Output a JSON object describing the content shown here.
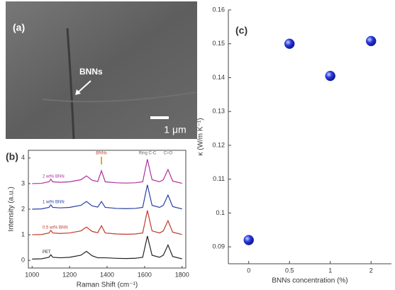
{
  "image_panel": {
    "label": "(a)",
    "annotation": "BNNs",
    "scale_bar": "1 μm"
  },
  "chart_data": [
    {
      "type": "line",
      "title": "(b)",
      "x_label": "Raman Shift (cm⁻¹)",
      "y_label": "Intensity (a.u.)",
      "x": [
        1000,
        1050,
        1090,
        1100,
        1110,
        1150,
        1200,
        1260,
        1290,
        1320,
        1350,
        1370,
        1390,
        1450,
        1500,
        1550,
        1590,
        1615,
        1640,
        1680,
        1700,
        1725,
        1750,
        1800
      ],
      "series": [
        {
          "name": "PET",
          "color": "#222222",
          "values": [
            0.05,
            0.06,
            0.12,
            0.22,
            0.12,
            0.1,
            0.12,
            0.2,
            0.35,
            0.18,
            0.1,
            0.1,
            0.1,
            0.08,
            0.07,
            0.08,
            0.12,
            0.95,
            0.2,
            0.12,
            0.2,
            0.6,
            0.15,
            0.06
          ]
        },
        {
          "name": "0.5 wt% BNN",
          "color": "#c0392b",
          "values": [
            1.0,
            1.01,
            1.07,
            1.17,
            1.07,
            1.05,
            1.07,
            1.15,
            1.3,
            1.13,
            1.08,
            1.35,
            1.07,
            1.03,
            1.02,
            1.03,
            1.07,
            1.95,
            1.15,
            1.07,
            1.15,
            1.55,
            1.1,
            1.01
          ]
        },
        {
          "name": "1 wt% BNN",
          "color": "#2a3fa0",
          "values": [
            2.0,
            2.01,
            2.07,
            2.17,
            2.07,
            2.05,
            2.07,
            2.15,
            2.3,
            2.13,
            2.08,
            2.3,
            2.07,
            2.03,
            2.02,
            2.03,
            2.07,
            2.95,
            2.15,
            2.07,
            2.15,
            2.55,
            2.1,
            2.01
          ]
        },
        {
          "name": "2 wt% BNN",
          "color": "#b0309a",
          "values": [
            3.0,
            3.01,
            3.07,
            3.17,
            3.07,
            3.05,
            3.07,
            3.15,
            3.3,
            3.13,
            3.08,
            3.5,
            3.07,
            3.03,
            3.02,
            3.03,
            3.07,
            3.95,
            3.15,
            3.07,
            3.15,
            3.55,
            3.1,
            3.01
          ]
        }
      ],
      "annotations": [
        "BNNs",
        "Ring C-C",
        "C=O"
      ],
      "xlim": [
        980,
        1820
      ],
      "xticks": [
        1000,
        1200,
        1400,
        1600,
        1800
      ],
      "ylim": [
        -0.3,
        4.3
      ],
      "yticks": [
        0,
        1,
        2,
        3,
        4
      ]
    },
    {
      "type": "scatter",
      "title": "(c)",
      "x_label": "BNNs concentration (%)",
      "y_label": "κ (W/m K⁻¹)",
      "categories": [
        "0",
        "0.5",
        "1",
        "2"
      ],
      "values": [
        0.092,
        0.15,
        0.1405,
        0.1508
      ],
      "color": "#1a2fc8",
      "ylim": [
        0.085,
        0.16
      ],
      "yticks": [
        0.09,
        0.1,
        0.11,
        0.12,
        0.13,
        0.14,
        0.15,
        0.16
      ]
    }
  ]
}
